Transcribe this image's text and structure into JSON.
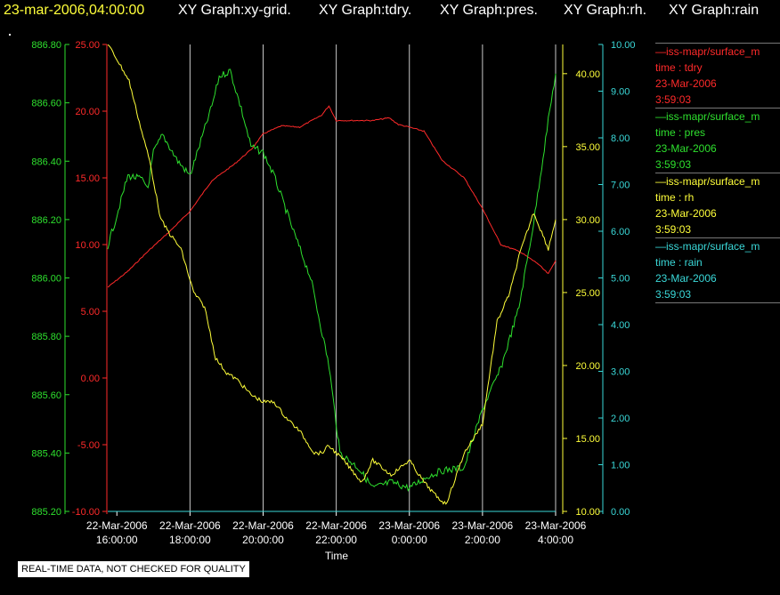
{
  "header": {
    "timestamp": "23-mar-2006,04:00:00",
    "titles": [
      "XY Graph:xy-grid.",
      "XY Graph:tdry.",
      "XY Graph:pres.",
      "XY Graph:rh.",
      "XY Graph:rain"
    ]
  },
  "colors": {
    "tdry": "#ff2a2a",
    "pres": "#2ee02e",
    "rh": "#ffff3a",
    "rain": "#3ad8d8",
    "grid": "#c8c8c8",
    "background": "#000000"
  },
  "legend": [
    {
      "name": "—iss-mapr/surface_m",
      "field": "time : tdry",
      "date": "23-Mar-2006",
      "time": "3:59:03"
    },
    {
      "name": "—iss-mapr/surface_m",
      "field": "time : pres",
      "date": "23-Mar-2006",
      "time": "3:59:03"
    },
    {
      "name": "—iss-mapr/surface_m",
      "field": "time : rh",
      "date": "23-Mar-2006",
      "time": "3:59:03"
    },
    {
      "name": "—iss-mapr/surface_m",
      "field": "time : rain",
      "date": "23-Mar-2006",
      "time": "3:59:03"
    }
  ],
  "notice": "REAL-TIME DATA, NOT CHECKED FOR QUALITY",
  "chart_data": {
    "type": "line",
    "xlabel": "Time",
    "xlim": [
      "2006-03-22 15:45",
      "2006-03-23 04:00"
    ],
    "x_ticks": [
      {
        "value": "2006-03-22 16:00",
        "date": "22-Mar-2006",
        "time": "16:00:00"
      },
      {
        "value": "2006-03-22 18:00",
        "date": "22-Mar-2006",
        "time": "18:00:00"
      },
      {
        "value": "2006-03-22 20:00",
        "date": "22-Mar-2006",
        "time": "20:00:00"
      },
      {
        "value": "2006-03-22 22:00",
        "date": "22-Mar-2006",
        "time": "22:00:00"
      },
      {
        "value": "2006-03-23 00:00",
        "date": "23-Mar-2006",
        "time": "0:00:00"
      },
      {
        "value": "2006-03-23 02:00",
        "date": "23-Mar-2006",
        "time": "2:00:00"
      },
      {
        "value": "2006-03-23 04:00",
        "date": "23-Mar-2006",
        "time": "4:00:00"
      }
    ],
    "grid": true,
    "axes": {
      "pres": {
        "ylim": [
          885.2,
          886.8
        ],
        "ticks": [
          "885.20",
          "885.40",
          "885.60",
          "885.80",
          "886.00",
          "886.20",
          "886.40",
          "886.60",
          "886.80"
        ]
      },
      "tdry": {
        "ylim": [
          -10,
          25
        ],
        "ticks": [
          "-10.00",
          "-5.00",
          "0.00",
          "5.00",
          "10.00",
          "15.00",
          "20.00",
          "25.00"
        ]
      },
      "rh": {
        "ylim": [
          10,
          42
        ],
        "ticks": [
          "10.00",
          "15.00",
          "20.00",
          "25.00",
          "30.00",
          "35.00",
          "40.00"
        ]
      },
      "rain": {
        "ylim": [
          0,
          10
        ],
        "ticks": [
          "0.00",
          "1.00",
          "2.00",
          "3.00",
          "4.00",
          "5.00",
          "6.00",
          "7.00",
          "8.00",
          "9.00",
          "10.00"
        ]
      }
    },
    "series": [
      {
        "key": "tdry",
        "x": [
          "2006-03-22 15:45",
          "2006-03-22 16:18",
          "2006-03-22 16:51",
          "2006-03-22 17:27",
          "2006-03-22 18:00",
          "2006-03-22 18:36",
          "2006-03-22 19:12",
          "2006-03-22 19:42",
          "2006-03-22 20:00",
          "2006-03-22 20:30",
          "2006-03-22 21:00",
          "2006-03-22 21:36",
          "2006-03-22 21:48",
          "2006-03-22 22:00",
          "2006-03-22 22:30",
          "2006-03-22 23:00",
          "2006-03-22 23:27",
          "2006-03-22 23:42",
          "2006-03-23 00:00",
          "2006-03-23 00:24",
          "2006-03-23 00:54",
          "2006-03-23 01:30",
          "2006-03-23 02:00",
          "2006-03-23 02:30",
          "2006-03-23 03:00",
          "2006-03-23 03:30",
          "2006-03-23 03:48",
          "2006-03-23 04:00"
        ],
        "values": [
          6.8,
          8.0,
          9.5,
          11.0,
          12.5,
          14.8,
          16.0,
          17.2,
          18.3,
          18.9,
          18.8,
          19.7,
          20.4,
          19.3,
          19.3,
          19.3,
          19.5,
          19.0,
          18.8,
          18.5,
          16.3,
          15.0,
          12.7,
          10.0,
          9.5,
          8.6,
          7.8,
          8.8
        ]
      },
      {
        "key": "pres",
        "x": [
          "2006-03-22 15:45",
          "2006-03-22 15:58",
          "2006-03-22 16:18",
          "2006-03-22 16:39",
          "2006-03-22 16:51",
          "2006-03-22 17:00",
          "2006-03-22 17:15",
          "2006-03-22 17:40",
          "2006-03-22 18:00",
          "2006-03-22 18:36",
          "2006-03-22 18:48",
          "2006-03-22 19:06",
          "2006-03-22 19:24",
          "2006-03-22 19:40",
          "2006-03-22 20:00",
          "2006-03-22 20:18",
          "2006-03-22 20:48",
          "2006-03-22 21:18",
          "2006-03-22 21:48",
          "2006-03-22 22:00",
          "2006-03-22 22:06",
          "2006-03-22 22:36",
          "2006-03-22 23:00",
          "2006-03-22 23:30",
          "2006-03-23 00:00",
          "2006-03-23 00:30",
          "2006-03-23 00:54",
          "2006-03-23 01:30",
          "2006-03-23 02:00",
          "2006-03-23 02:30",
          "2006-03-23 03:00",
          "2006-03-23 03:24",
          "2006-03-23 03:48",
          "2006-03-23 04:00"
        ],
        "values": [
          886.11,
          886.2,
          886.35,
          886.34,
          886.31,
          886.43,
          886.49,
          886.4,
          886.35,
          886.59,
          886.69,
          886.71,
          886.58,
          886.45,
          886.43,
          886.35,
          886.17,
          886.0,
          885.7,
          885.5,
          885.4,
          885.35,
          885.28,
          885.3,
          885.28,
          885.32,
          885.34,
          885.35,
          885.55,
          885.69,
          885.9,
          886.19,
          886.54,
          886.7
        ]
      },
      {
        "key": "rh",
        "x": [
          "2006-03-22 15:45",
          "2006-03-22 16:00",
          "2006-03-22 16:20",
          "2006-03-22 16:41",
          "2006-03-22 16:54",
          "2006-03-22 17:12",
          "2006-03-22 17:27",
          "2006-03-22 17:45",
          "2006-03-22 18:06",
          "2006-03-22 18:24",
          "2006-03-22 18:42",
          "2006-03-22 19:00",
          "2006-03-22 19:18",
          "2006-03-22 19:40",
          "2006-03-22 20:00",
          "2006-03-22 20:18",
          "2006-03-22 20:36",
          "2006-03-22 21:00",
          "2006-03-22 21:24",
          "2006-03-22 21:36",
          "2006-03-22 21:48",
          "2006-03-22 22:12",
          "2006-03-22 22:42",
          "2006-03-22 23:00",
          "2006-03-22 23:30",
          "2006-03-23 00:00",
          "2006-03-23 00:24",
          "2006-03-23 00:45",
          "2006-03-23 01:00",
          "2006-03-23 01:09",
          "2006-03-23 01:30",
          "2006-03-23 02:00",
          "2006-03-23 02:24",
          "2006-03-23 02:45",
          "2006-03-23 03:00",
          "2006-03-23 03:24",
          "2006-03-23 03:48",
          "2006-03-23 04:00"
        ],
        "values": [
          42.0,
          41.0,
          39.5,
          36.0,
          34.0,
          30.0,
          29.0,
          28.0,
          25.0,
          24.0,
          20.5,
          19.5,
          19.0,
          18.0,
          17.5,
          17.5,
          16.5,
          15.5,
          14.0,
          14.0,
          14.5,
          13.5,
          12.0,
          13.5,
          12.5,
          13.5,
          12.0,
          11.0,
          10.5,
          11.5,
          14.0,
          16.0,
          23.0,
          25.0,
          27.5,
          30.5,
          28.0,
          30.0
        ]
      },
      {
        "key": "rain",
        "x": [
          "2006-03-22 15:45",
          "2006-03-23 04:00"
        ],
        "values": [
          0.0,
          0.0
        ]
      }
    ]
  }
}
